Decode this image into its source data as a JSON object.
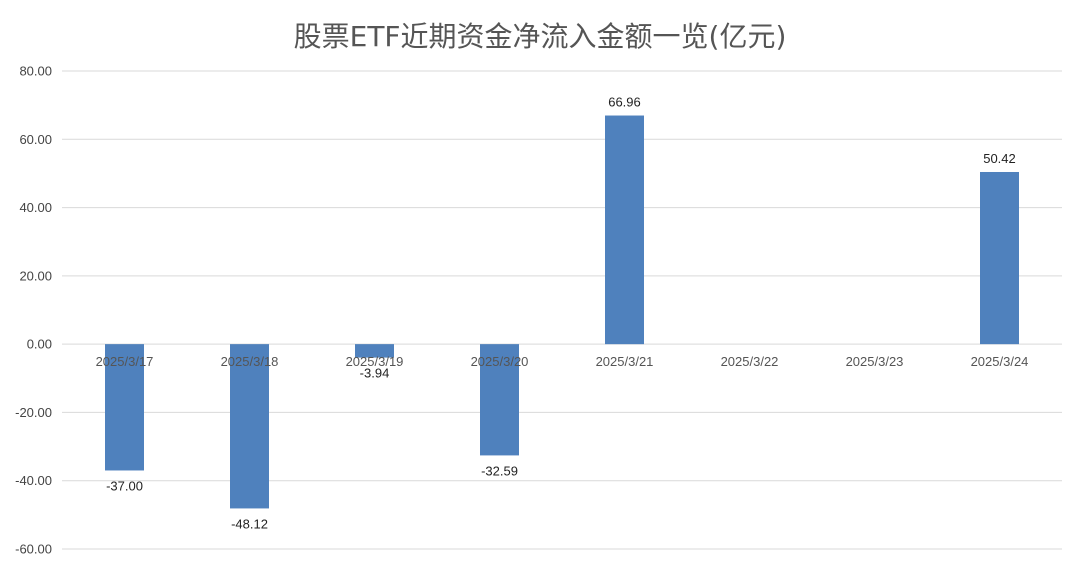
{
  "chart_data": {
    "type": "bar",
    "title": "股票ETF近期资金净流入金额一览(亿元)",
    "categories": [
      "2025/3/17",
      "2025/3/18",
      "2025/3/19",
      "2025/3/20",
      "2025/3/21",
      "2025/3/22",
      "2025/3/23",
      "2025/3/24"
    ],
    "values": [
      -37.0,
      -48.12,
      -3.94,
      -32.59,
      66.96,
      null,
      null,
      50.42
    ],
    "data_labels": [
      "-37.00",
      "-48.12",
      "-3.94",
      "-32.59",
      "66.96",
      "",
      "",
      "50.42"
    ],
    "ylim": [
      -60,
      80
    ],
    "yticks": [
      "80.00",
      "60.00",
      "40.00",
      "20.00",
      "0.00",
      "-20.00",
      "-40.00",
      "-60.00"
    ],
    "ytick_values": [
      80,
      60,
      40,
      20,
      0,
      -20,
      -40,
      -60
    ],
    "xlabel": "",
    "ylabel": "",
    "grid": true,
    "legend": "none",
    "bar_color": "#4f81bd"
  }
}
